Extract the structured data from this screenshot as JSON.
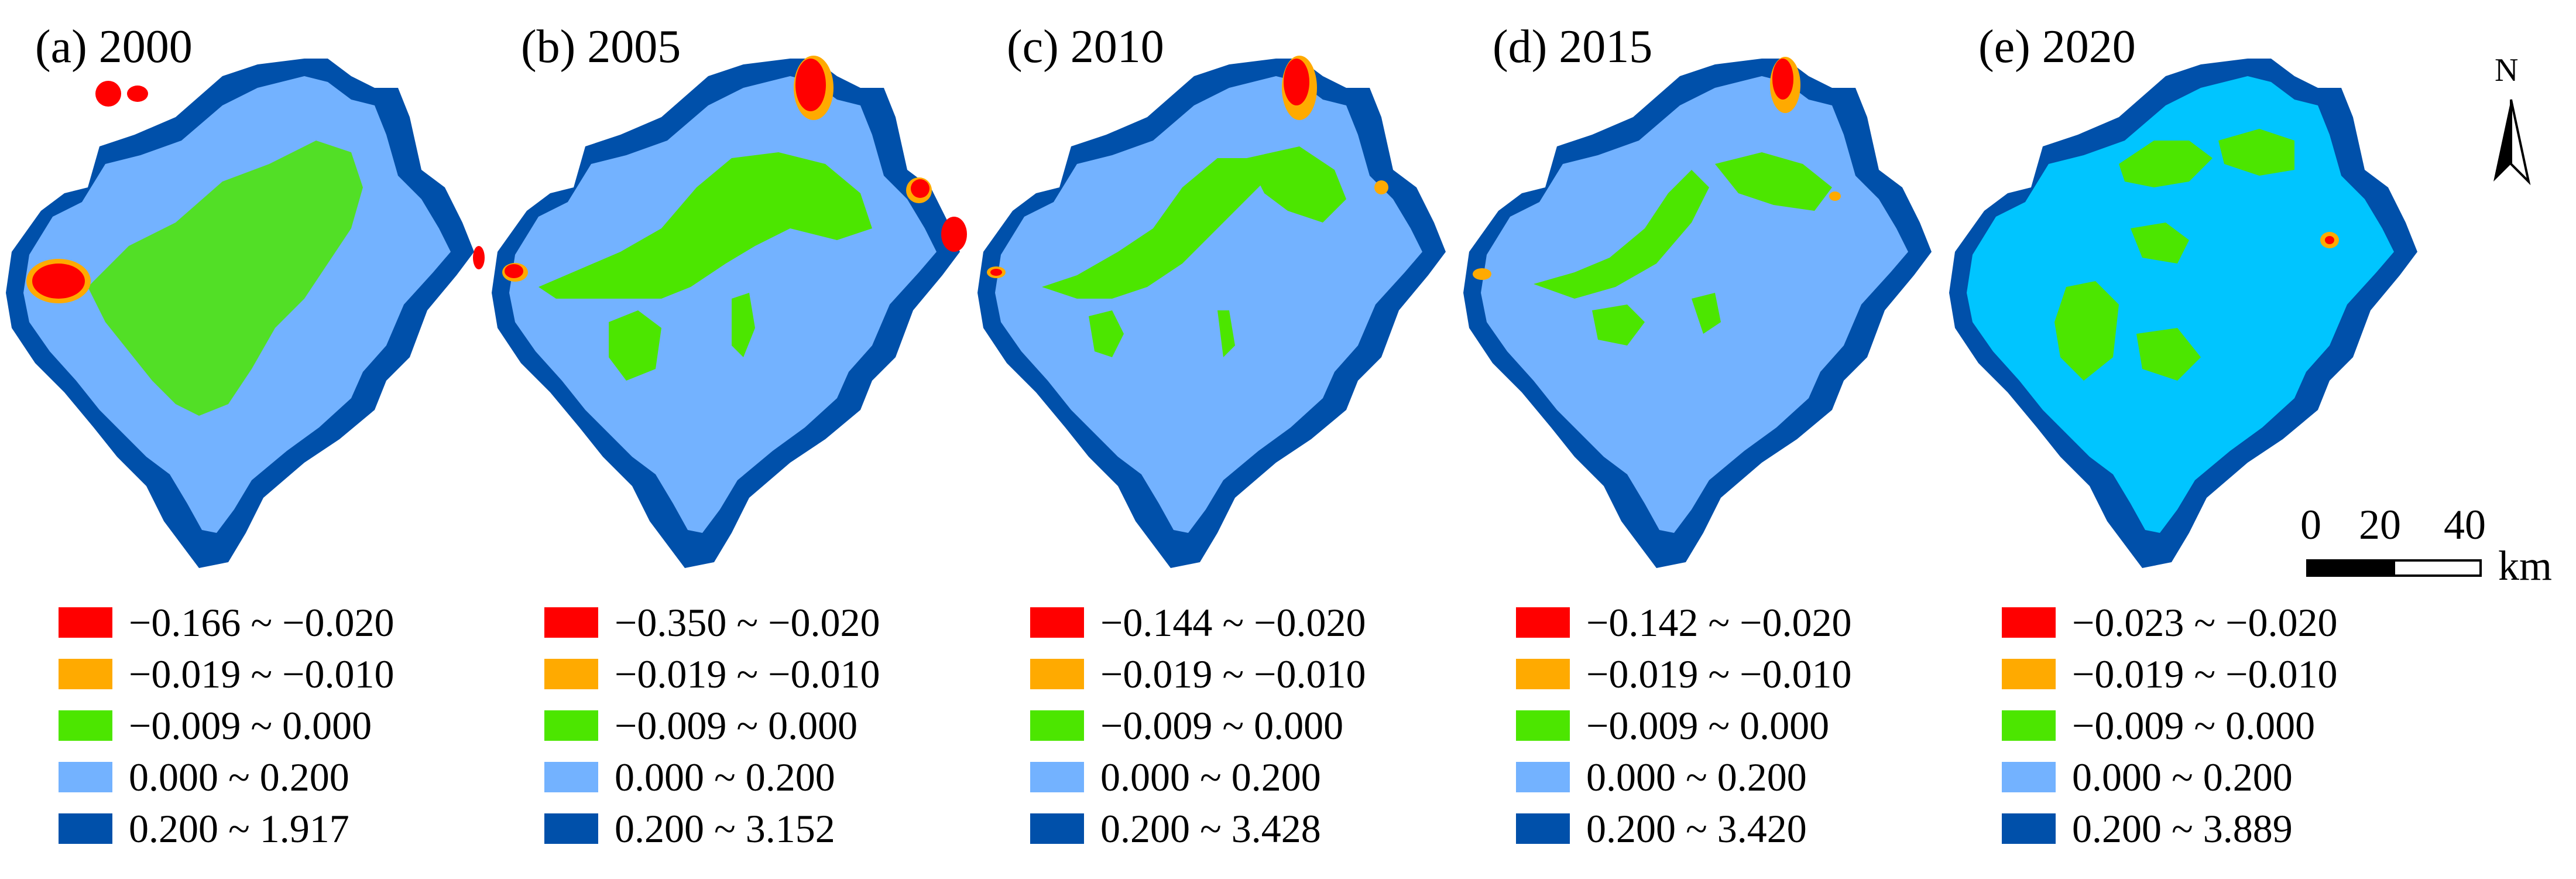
{
  "colors": {
    "red": "#ff0000",
    "orange": "#ffaa00",
    "green": "#4ce600",
    "light_blue": "#73b2ff",
    "dark_blue": "#0050aa",
    "cyan_2020": "#00c5ff"
  },
  "panels": [
    {
      "title": "(a) 2000",
      "interior_color": "#73b2ff",
      "legend": [
        "−0.166 ~ −0.020",
        "−0.019 ~ −0.010",
        "−0.009 ~ 0.000",
        "0.000 ~ 0.200",
        "0.200 ~ 1.917"
      ]
    },
    {
      "title": "(b) 2005",
      "interior_color": "#73b2ff",
      "legend": [
        "−0.350 ~ −0.020",
        "−0.019 ~ −0.010",
        "−0.009 ~ 0.000",
        "0.000 ~ 0.200",
        "0.200 ~ 3.152"
      ]
    },
    {
      "title": "(c) 2010",
      "interior_color": "#73b2ff",
      "legend": [
        "−0.144 ~ −0.020",
        "−0.019 ~ −0.010",
        "−0.009 ~ 0.000",
        "0.000 ~ 0.200",
        "0.200 ~ 3.428"
      ]
    },
    {
      "title": "(d) 2015",
      "interior_color": "#73b2ff",
      "legend": [
        "−0.142 ~ −0.020",
        "−0.019 ~ −0.010",
        "−0.009 ~ 0.000",
        "0.000 ~ 0.200",
        "0.200 ~ 3.420"
      ]
    },
    {
      "title": "(e) 2020",
      "interior_color": "#00c5ff",
      "legend": [
        "−0.023 ~ −0.020",
        "−0.019 ~ −0.010",
        "−0.009 ~ 0.000",
        "0.000 ~ 0.200",
        "0.200 ~ 3.889"
      ]
    }
  ],
  "north_arrow": {
    "label": "N",
    "icon": "north-arrow-icon"
  },
  "scale_bar": {
    "ticks": [
      "0",
      "20",
      "40"
    ],
    "unit": "km"
  }
}
